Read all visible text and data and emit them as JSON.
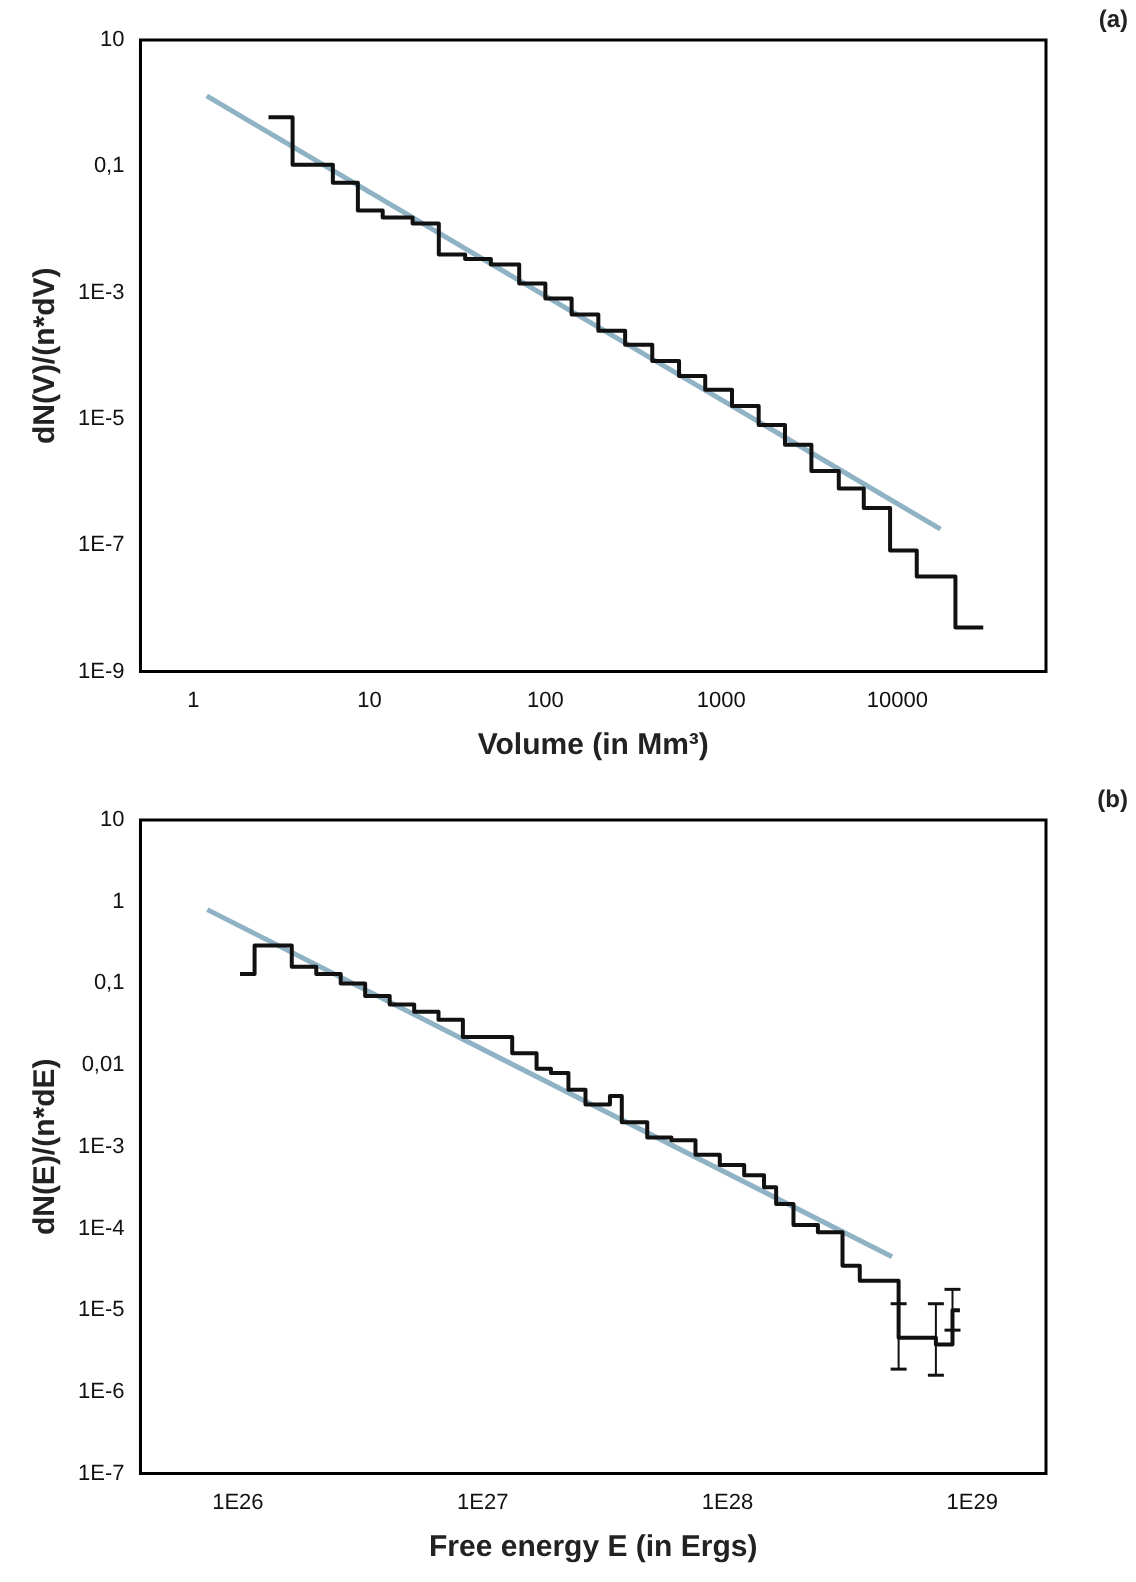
{
  "chart_data": [
    {
      "type": "step",
      "xlabel": "Volume (in Mm³)",
      "ylabel": "dN(V)/(n*dV)",
      "annotations": [
        "(a)"
      ],
      "log": "xy",
      "grid": false,
      "legend": false,
      "marker": "none",
      "xlim": [
        0.5,
        70000
      ],
      "xticks": [
        1,
        10,
        100,
        1000,
        10000
      ],
      "ylim": [
        1e-09,
        10
      ],
      "yticks": [
        {
          "value": 10,
          "label": "10"
        },
        {
          "value": 0.1,
          "label": "0,1"
        },
        {
          "value": 0.001,
          "label": "1E-3"
        },
        {
          "value": 1e-05,
          "label": "1E-5"
        },
        {
          "value": 1e-07,
          "label": "1E-7"
        },
        {
          "value": 1e-09,
          "label": "1E-9"
        }
      ],
      "series": [
        {
          "type": "step",
          "color": "#111111",
          "x": [
            2.67,
            3.66,
            6.2,
            8.6,
            11.9,
            17.6,
            24.8,
            35,
            49,
            71,
            100,
            141,
            200,
            284,
            405,
            575,
            810,
            1150,
            1630,
            2300,
            3250,
            4650,
            6450,
            9100,
            12900,
            21400,
            30800
          ],
          "values": [
            0.6,
            0.106,
            0.055,
            0.02,
            0.0155,
            0.0124,
            0.004,
            0.0034,
            0.0028,
            0.0014,
            0.00081,
            0.00045,
            0.00025,
            0.00015,
            8.3e-05,
            4.8e-05,
            2.9e-05,
            1.6e-05,
            8e-06,
            3.9e-06,
            1.5e-06,
            7.9e-07,
            3.9e-07,
            8.3e-08,
            3.2e-08,
            5e-09,
            5e-09
          ]
        },
        {
          "type": "line",
          "color": "#8fb3c4",
          "x": [
            1.19,
            17600
          ],
          "values": [
            1.3,
            1.8e-07
          ]
        }
      ]
    },
    {
      "type": "step",
      "xlabel": "Free energy E (in Ergs)",
      "ylabel": "dN(E)/(n*dE)",
      "annotations": [
        "(b)"
      ],
      "log": "xy",
      "grid": false,
      "legend": false,
      "marker": "none",
      "xlim": [
        4e+25,
        2e+29
      ],
      "xticks": [
        {
          "value": 1e+26,
          "label": "1E26"
        },
        {
          "value": 1e+27,
          "label": "1E27"
        },
        {
          "value": 1e+28,
          "label": "1E28"
        },
        {
          "value": 1e+29,
          "label": "1E29"
        }
      ],
      "ylim": [
        1e-07,
        10
      ],
      "yticks": [
        {
          "value": 10,
          "label": "10"
        },
        {
          "value": 1,
          "label": "1"
        },
        {
          "value": 0.1,
          "label": "0,1"
        },
        {
          "value": 0.01,
          "label": "0,01"
        },
        {
          "value": 0.001,
          "label": "1E-3"
        },
        {
          "value": 0.0001,
          "label": "1E-4"
        },
        {
          "value": 1e-05,
          "label": "1E-5"
        },
        {
          "value": 1e-06,
          "label": "1E-6"
        },
        {
          "value": 1e-07,
          "label": "1E-7"
        }
      ],
      "series": [
        {
          "type": "step",
          "color": "#111111",
          "x": [
            1.02e+26,
            1.17e+26,
            1.66e+26,
            2.09e+26,
            2.63e+26,
            3.31e+26,
            4.17e+26,
            5.25e+26,
            6.6e+26,
            8.3e+26,
            1.05e+27,
            1.32e+27,
            1.66e+27,
            1.9e+27,
            2.24e+27,
            2.63e+27,
            3.31e+27,
            3.7e+27,
            4.7e+27,
            5.9e+27,
            7.4e+27,
            9.3e+27,
            1.17e+28,
            1.41e+28,
            1.58e+28,
            1.86e+28,
            2.34e+28,
            2.95e+28,
            3.47e+28,
            5e+28,
            7.1e+28,
            8.3e+28,
            8.9e+28
          ],
          "values": [
            0.13,
            0.29,
            0.16,
            0.13,
            0.1,
            0.07,
            0.055,
            0.045,
            0.036,
            0.022,
            0.022,
            0.014,
            0.009,
            0.008,
            0.005,
            0.0033,
            0.0042,
            0.002,
            0.0013,
            0.0012,
            0.0008,
            0.0006,
            0.00045,
            0.00032,
            0.0002,
            0.00011,
            9e-05,
            3.5e-05,
            2.3e-05,
            4.6e-06,
            3.8e-06,
            1e-05,
            1e-05
          ],
          "errors": [
            null,
            null,
            null,
            null,
            null,
            null,
            null,
            null,
            null,
            null,
            null,
            null,
            null,
            null,
            null,
            null,
            null,
            null,
            null,
            null,
            null,
            null,
            null,
            null,
            null,
            null,
            null,
            null,
            null,
            [
              1.9e-06,
              1.2e-05
            ],
            [
              1.6e-06,
              1.2e-05
            ],
            [
              5.7e-06,
              1.8e-05
            ],
            null
          ]
        },
        {
          "type": "line",
          "color": "#8fb3c4",
          "x": [
            7.5e+25,
            4.7e+28
          ],
          "values": [
            0.8,
            4.5e-05
          ]
        }
      ]
    }
  ]
}
